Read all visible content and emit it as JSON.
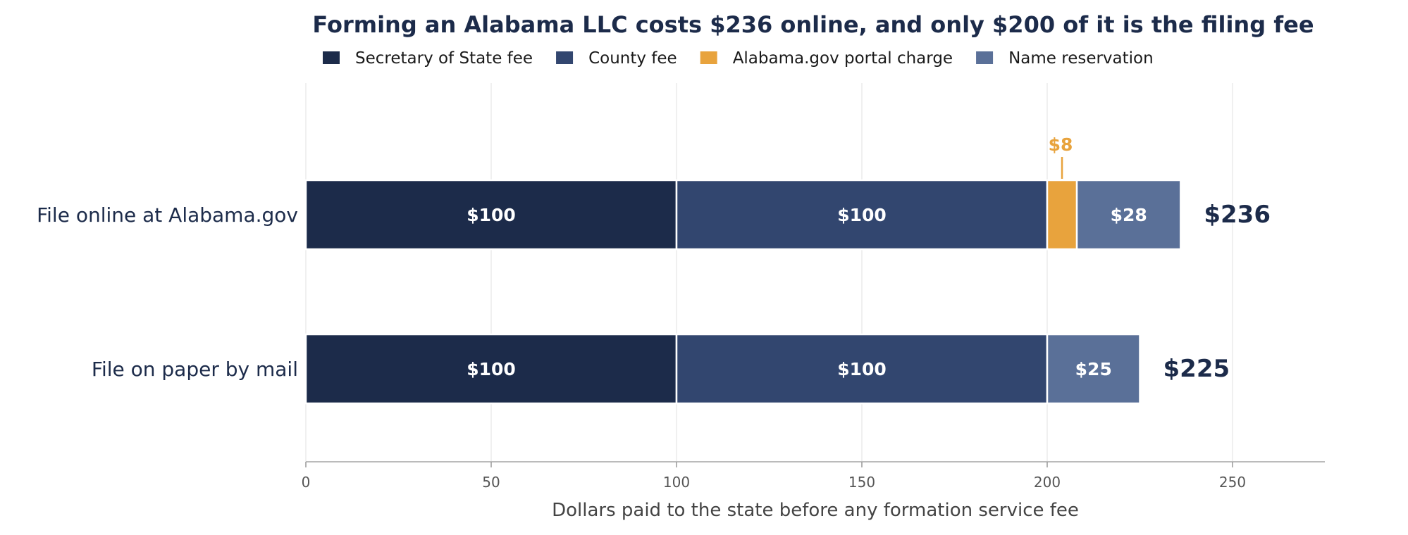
{
  "chart_data": {
    "type": "bar",
    "orientation": "horizontal",
    "stacked": true,
    "title": "Forming an Alabama LLC costs $236 online, and only $200 of it is the filing fee",
    "xlabel": "Dollars paid to the state before any formation service fee",
    "ylabel": "",
    "xlim": [
      0,
      275
    ],
    "x_ticks": [
      0,
      50,
      100,
      150,
      200,
      250
    ],
    "grid": true,
    "legend_position": "top",
    "categories": [
      "File online at Alabama.gov",
      "File on paper by mail"
    ],
    "series": [
      {
        "name": "Secretary of State fee",
        "color": "#1c2b4a",
        "values": [
          100,
          100
        ],
        "labels": [
          "$100",
          "$100"
        ]
      },
      {
        "name": "County fee",
        "color": "#32466f",
        "values": [
          100,
          100
        ],
        "labels": [
          "$100",
          "$100"
        ]
      },
      {
        "name": "Alabama.gov portal charge",
        "color": "#e8a33d",
        "values": [
          8,
          0
        ],
        "labels": [
          "$8",
          ""
        ]
      },
      {
        "name": "Name reservation",
        "color": "#5a7098",
        "values": [
          28,
          25
        ],
        "labels": [
          "$28",
          "$25"
        ]
      }
    ],
    "totals": [
      {
        "value": 236,
        "label": "$236"
      },
      {
        "value": 225,
        "label": "$225"
      }
    ]
  }
}
